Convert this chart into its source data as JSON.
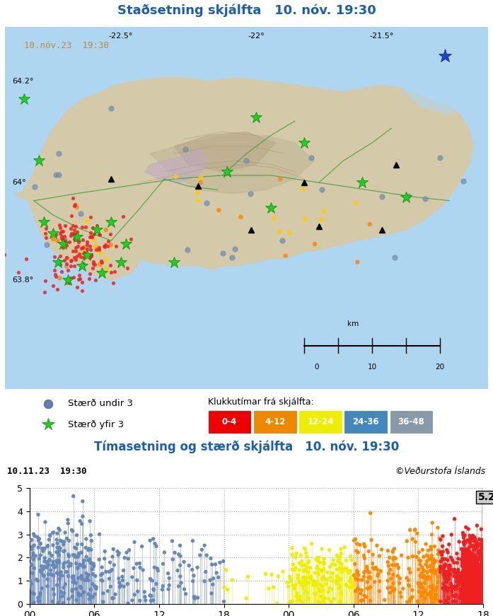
{
  "title_map": "Staðsetning skjálfta   10. nóv. 19:30",
  "title_time": "Tímasetning og stærð skjálfta   10. nóv. 19:30",
  "map_timestamp": "10.nóv.23  19:30",
  "chart_timestamp": "10.11.23  19:30",
  "copyright": "©Veðurstofa Íslands",
  "background_color": "#ffffff",
  "map_bg": "#aed6f1",
  "land_color": "#d4c9a8",
  "title_color": "#1a5fa8",
  "legend_label_1": "Stærð undir 3",
  "legend_label_2": "Stærð yfir 3",
  "legend_circle_color": "#6080b0",
  "legend_star_color": "#22cc22",
  "time_bins": [
    "0-4",
    "4-12",
    "12-24",
    "24-36",
    "36-48"
  ],
  "time_bin_colors": [
    "#ee0000",
    "#ee8800",
    "#eeee00",
    "#4488bb",
    "#8899aa"
  ],
  "klukku_label": "Klukkutímar frá skjálfta:",
  "ylim_chart": [
    0,
    5
  ],
  "yticks_chart": [
    0,
    1,
    2,
    3,
    4,
    5
  ],
  "xtick_labels": [
    "00",
    "06",
    "12",
    "18",
    "00",
    "06",
    "12",
    "18"
  ],
  "annotation_mag": "5.2",
  "chart_border_color": "#888888",
  "map_border_color": "#888888"
}
